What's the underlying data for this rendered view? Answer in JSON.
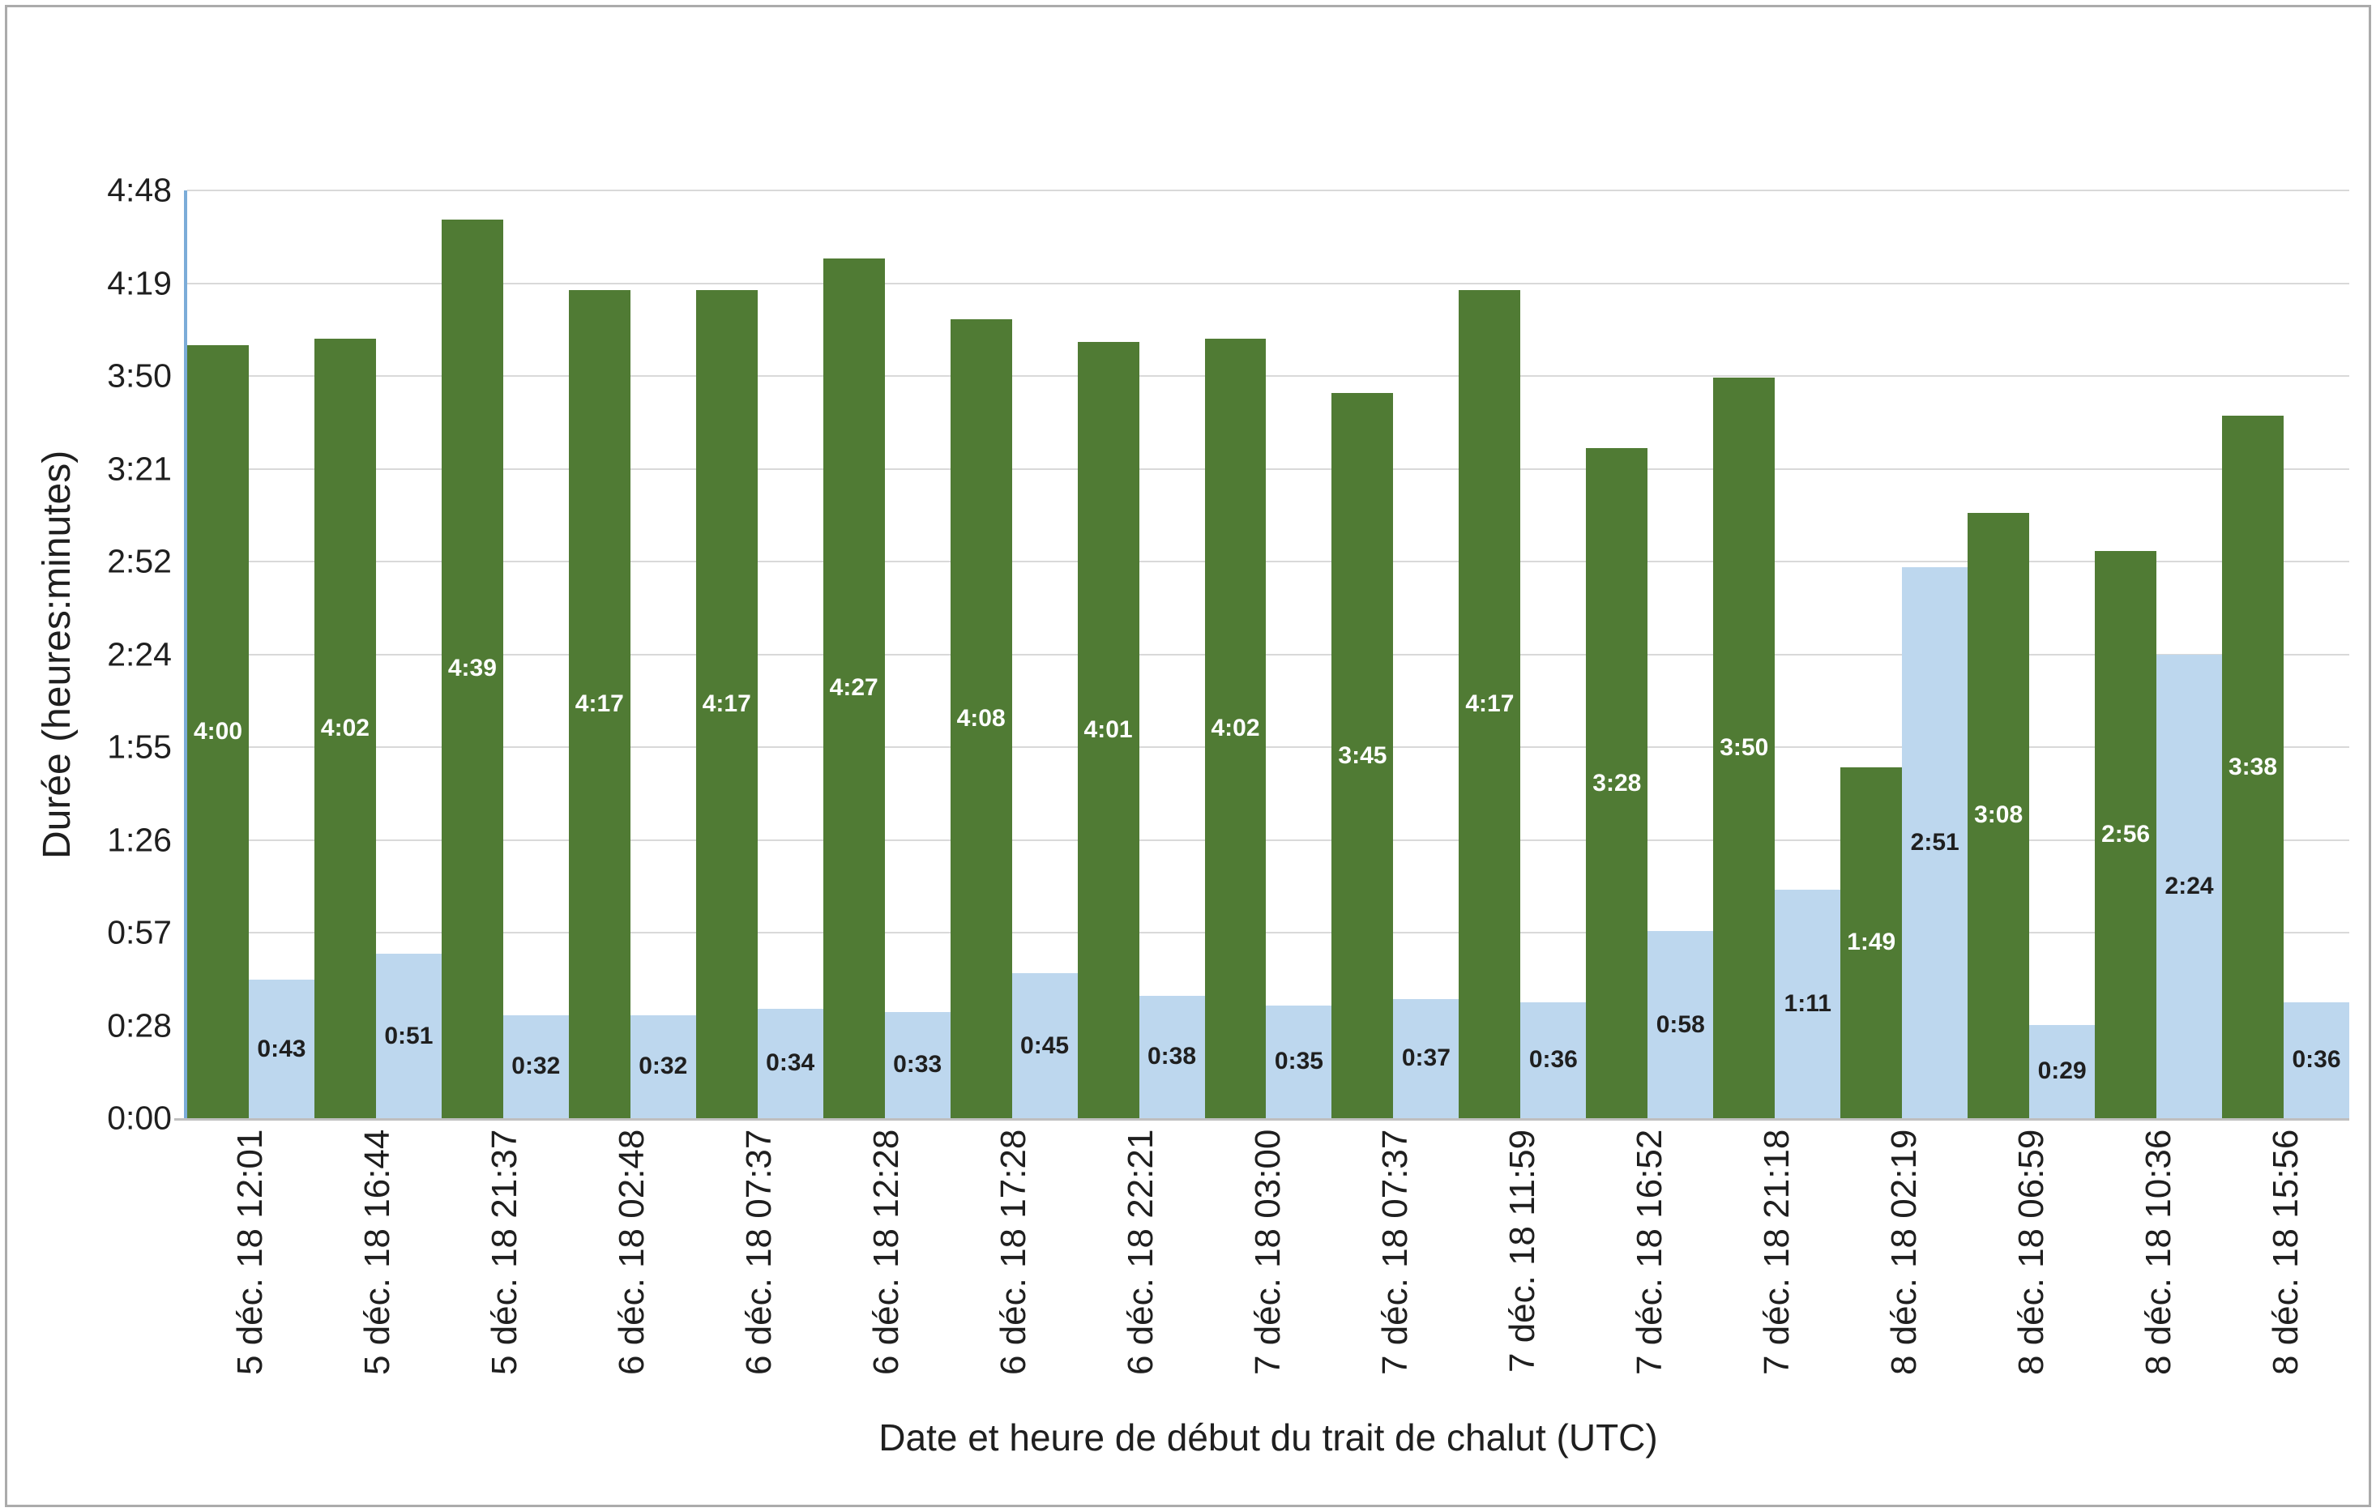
{
  "frame": {
    "background": "#FFFFFF",
    "border_color": "#ABABAB"
  },
  "chart_data": {
    "type": "bar",
    "title": "",
    "xlabel": "Date et heure de début du trait de chalut (UTC)",
    "ylabel": "Durée (heures:minutes)",
    "y_axis": {
      "tick_labels_bottom_to_top": [
        "0:00",
        "0:28",
        "0:57",
        "1:26",
        "1:55",
        "2:24",
        "2:52",
        "3:21",
        "3:50",
        "4:19",
        "4:48"
      ],
      "min_minutes": 0,
      "max_minutes": 288
    },
    "categories": [
      "5 déc. 18 12:01",
      "5 déc. 18 16:44",
      "5 déc. 18 21:37",
      "6 déc. 18 02:48",
      "6 déc. 18 07:37",
      "6 déc. 18 12:28",
      "6 déc. 18 17:28",
      "6 déc. 18 22:21",
      "7 déc. 18 03:00",
      "7 déc. 18 07:37",
      "7 déc. 18 11:59",
      "7 déc. 18 16:52",
      "7 déc. 18 21:18",
      "8 déc. 18 02:19",
      "8 déc. 18 06:59",
      "8 déc. 18 10:36",
      "8 déc. 18 15:56"
    ],
    "series": [
      {
        "id": "green-duration-series",
        "color": "#507B34",
        "label_color": "#FFFFFF",
        "value_labels": [
          "4:00",
          "4:02",
          "4:39",
          "4:17",
          "4:17",
          "4:27",
          "4:08",
          "4:01",
          "4:02",
          "3:45",
          "4:17",
          "3:28",
          "3:50",
          "1:49",
          "3:08",
          "2:56",
          "3:38"
        ],
        "minutes": [
          240,
          242,
          279,
          257,
          257,
          267,
          248,
          241,
          242,
          225,
          257,
          208,
          230,
          109,
          188,
          176,
          218
        ]
      },
      {
        "id": "blue-duration-series",
        "color": "#BDD7EE",
        "label_color": "#1F1F1F",
        "value_labels": [
          "0:43",
          "0:51",
          "0:32",
          "0:32",
          "0:34",
          "0:33",
          "0:45",
          "0:38",
          "0:35",
          "0:37",
          "0:36",
          "0:58",
          "1:11",
          "2:51",
          "0:29",
          "2:24",
          "0:36"
        ],
        "minutes": [
          43,
          51,
          32,
          32,
          34,
          33,
          45,
          38,
          35,
          37,
          36,
          58,
          71,
          171,
          29,
          144,
          36
        ]
      }
    ],
    "grid": {
      "show": true,
      "color": "#D9D9D9"
    },
    "axes_style": {
      "y_axis_line_color": "#7BACD8",
      "x_axis_line_color": "#BFBFBF"
    },
    "legend": {
      "show": false
    }
  }
}
